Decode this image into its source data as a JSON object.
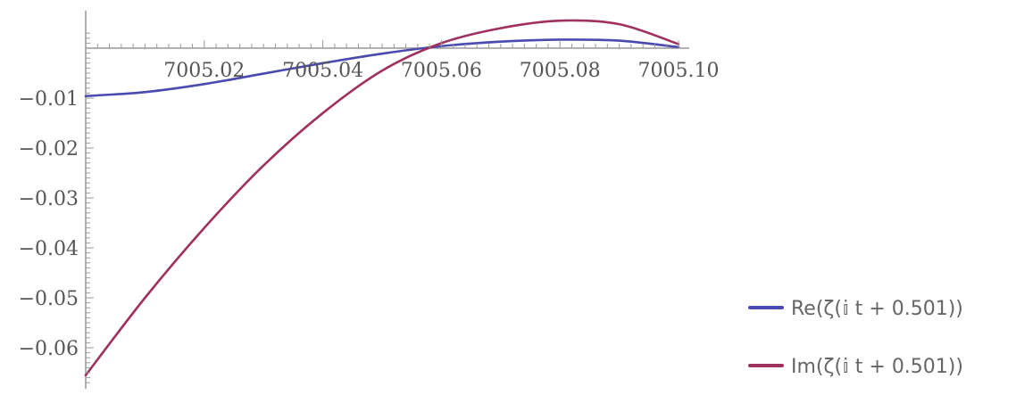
{
  "chart_data": {
    "type": "line",
    "title": "",
    "xlabel": "",
    "ylabel": "",
    "xlim": [
      7005.0,
      7005.1
    ],
    "ylim": [
      -0.067,
      0.008
    ],
    "x_ticks": [
      {
        "value": 7005.02,
        "label": "7005.02"
      },
      {
        "value": 7005.04,
        "label": "7005.04"
      },
      {
        "value": 7005.06,
        "label": "7005.06"
      },
      {
        "value": 7005.08,
        "label": "7005.08"
      },
      {
        "value": 7005.1,
        "label": "7005.10"
      }
    ],
    "y_ticks": [
      {
        "value": -0.01,
        "label": "−0.01"
      },
      {
        "value": -0.02,
        "label": "−0.02"
      },
      {
        "value": -0.03,
        "label": "−0.03"
      },
      {
        "value": -0.04,
        "label": "−0.04"
      },
      {
        "value": -0.05,
        "label": "−0.05"
      },
      {
        "value": -0.06,
        "label": "−0.06"
      }
    ],
    "grid": false,
    "legend_position": "bottom-right",
    "series": [
      {
        "name": "Re(ζ(𝕚 t + 0.501))",
        "color": "#4a4ab0",
        "x": [
          7005.0,
          7005.01,
          7005.02,
          7005.03,
          7005.04,
          7005.05,
          7005.06,
          7005.07,
          7005.08,
          7005.09,
          7005.1
        ],
        "y": [
          -0.0096,
          -0.0088,
          -0.0072,
          -0.0051,
          -0.003,
          -0.0011,
          0.0004,
          0.0013,
          0.0017,
          0.0015,
          0.0002
        ]
      },
      {
        "name": "Im(ζ(𝕚 t + 0.501))",
        "color": "#a0305e",
        "x": [
          7005.0,
          7005.01,
          7005.02,
          7005.03,
          7005.04,
          7005.05,
          7005.06,
          7005.07,
          7005.08,
          7005.09,
          7005.1
        ],
        "y": [
          -0.0655,
          -0.05,
          -0.036,
          -0.0235,
          -0.013,
          -0.0045,
          0.001,
          0.004,
          0.0055,
          0.0048,
          0.0008
        ]
      }
    ]
  }
}
